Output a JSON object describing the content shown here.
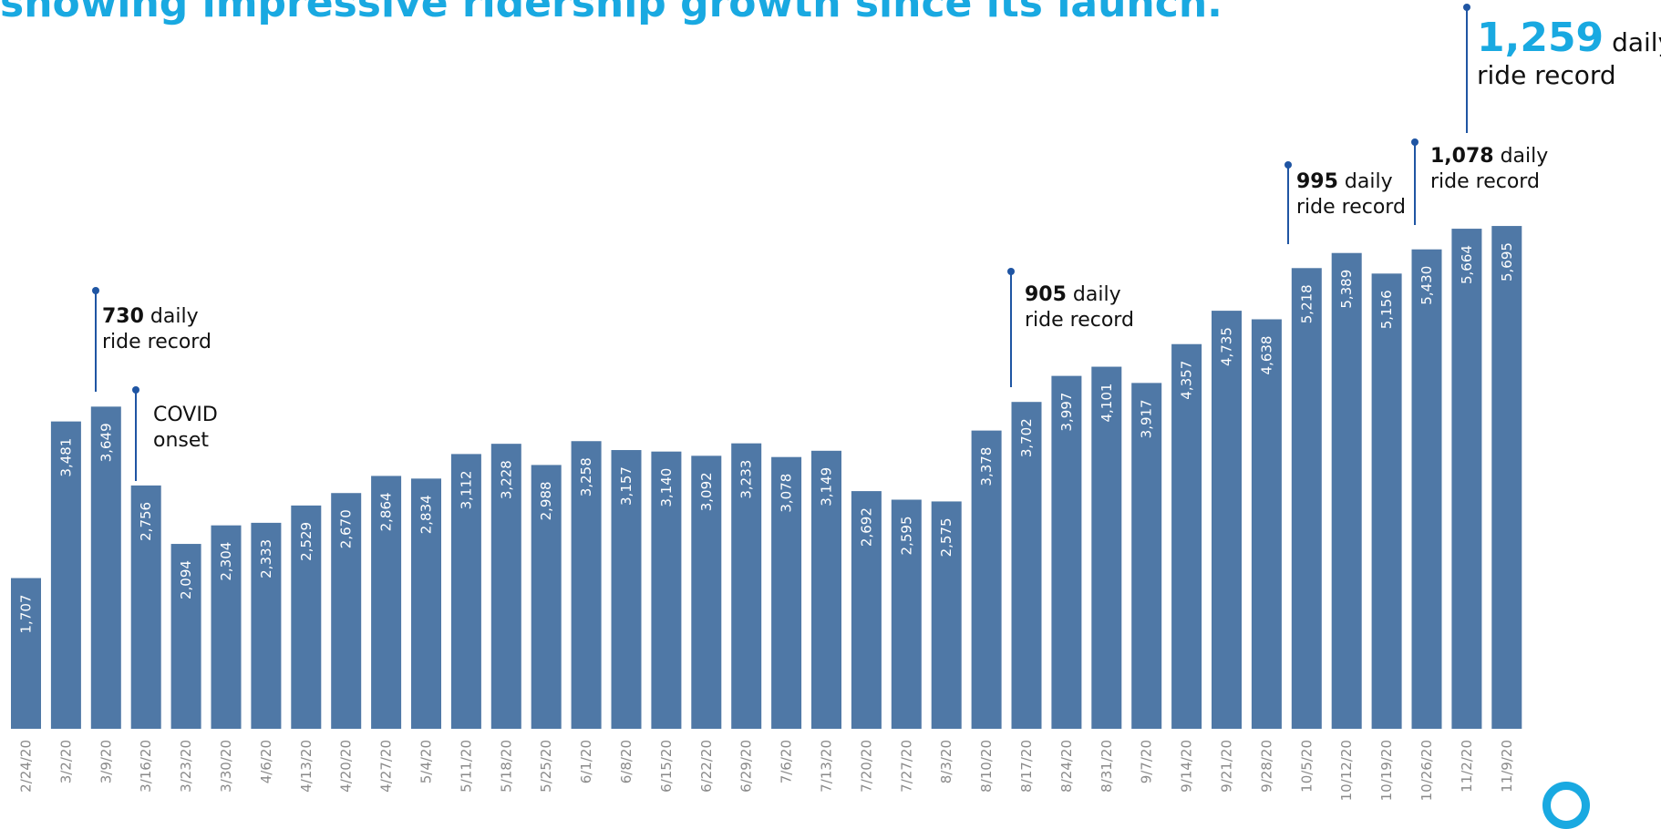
{
  "headline": "showing impressive ridership growth since its launch.",
  "chart_data": {
    "type": "bar",
    "categories": [
      "2/24/20",
      "3/2/20",
      "3/9/20",
      "3/16/20",
      "3/23/20",
      "3/30/20",
      "4/6/20",
      "4/13/20",
      "4/20/20",
      "4/27/20",
      "5/4/20",
      "5/11/20",
      "5/18/20",
      "5/25/20",
      "6/1/20",
      "6/8/20",
      "6/15/20",
      "6/22/20",
      "6/29/20",
      "7/6/20",
      "7/13/20",
      "7/20/20",
      "7/27/20",
      "8/3/20",
      "8/10/20",
      "8/17/20",
      "8/24/20",
      "8/31/20",
      "9/7/20",
      "9/14/20",
      "9/21/20",
      "9/28/20",
      "10/5/20",
      "10/12/20",
      "10/19/20",
      "10/26/20",
      "11/2/20",
      "11/9/20"
    ],
    "values": [
      1707,
      3481,
      3649,
      2756,
      2094,
      2304,
      2333,
      2529,
      2670,
      2864,
      2834,
      3112,
      3228,
      2988,
      3258,
      3157,
      3140,
      3092,
      3233,
      3078,
      3149,
      2692,
      2595,
      2575,
      3378,
      3702,
      3997,
      4101,
      3917,
      4357,
      4735,
      4638,
      5218,
      5389,
      5156,
      5430,
      5664,
      5695
    ],
    "value_labels": [
      "1,707",
      "3,481",
      "3,649",
      "2,756",
      "2,094",
      "2,304",
      "2,333",
      "2,529",
      "2,670",
      "2,864",
      "2,834",
      "3,112",
      "3,228",
      "2,988",
      "3,258",
      "3,157",
      "3,140",
      "3,092",
      "3,233",
      "3,078",
      "3,149",
      "2,692",
      "2,595",
      "2,575",
      "3,378",
      "3,702",
      "3,997",
      "4,101",
      "3,917",
      "4,357",
      "4,735",
      "4,638",
      "5,218",
      "5,389",
      "5,156",
      "5,430",
      "5,664",
      "5,695"
    ],
    "ylim": [
      0,
      6000
    ],
    "grid": false,
    "legend": "none",
    "bar_color": "#4f78a6",
    "annotations": [
      {
        "category": "3/9/20",
        "bold": "730",
        "line1": " daily",
        "line2": "ride record"
      },
      {
        "category": "3/16/20",
        "bold": "",
        "line1": "COVID",
        "line2": "onset"
      },
      {
        "category": "8/17/20",
        "bold": "905",
        "line1": " daily",
        "line2": "ride record"
      },
      {
        "category": "10/5/20",
        "bold": "995",
        "line1": " daily",
        "line2": "ride record"
      },
      {
        "category": "10/26/20",
        "bold": "1,078",
        "line1": " daily",
        "line2": "ride record"
      },
      {
        "category": "11/9/20",
        "bold": "1,259",
        "line1": " daily",
        "line2": "ride record",
        "highlight": true
      }
    ]
  },
  "colors": {
    "headline": "#19a9e1",
    "annotation_line": "#1f55a3",
    "highlight": "#19a9e1"
  },
  "logo": "via-logo-icon"
}
